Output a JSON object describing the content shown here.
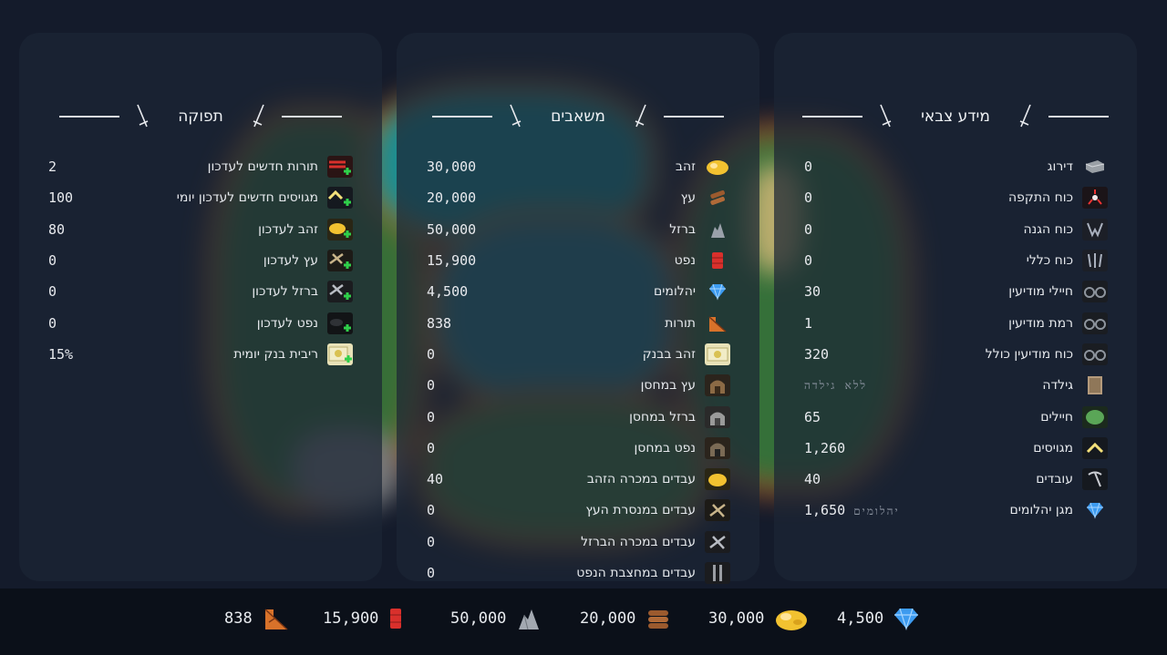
{
  "military": {
    "title": "מידע צבאי",
    "rows": [
      {
        "label": "דירוג",
        "value": "0",
        "icon": "rank-icon"
      },
      {
        "label": "כוח התקפה",
        "value": "0",
        "icon": "attack-icon"
      },
      {
        "label": "כוח הגנה",
        "value": "0",
        "icon": "defense-icon"
      },
      {
        "label": "כוח כללי",
        "value": "0",
        "icon": "total-power-icon"
      },
      {
        "label": "חיילי מודיעין",
        "value": "30",
        "icon": "spy-soldiers-icon"
      },
      {
        "label": "רמת מודיעין",
        "value": "1",
        "icon": "spy-level-icon"
      },
      {
        "label": "כוח מודיעין כולל",
        "value": "320",
        "icon": "spy-power-icon"
      },
      {
        "label": "גילדה",
        "value": "ללא גילדה",
        "icon": "guild-icon"
      },
      {
        "label": "חיילים",
        "value": "65",
        "icon": "soldiers-icon"
      },
      {
        "label": "מגויסים",
        "value": "1,260",
        "icon": "recruits-icon"
      },
      {
        "label": "עובדים",
        "value": "40",
        "icon": "workers-icon"
      },
      {
        "label": "מגן יהלומים",
        "value": "1,650",
        "suffix": "יהלומים",
        "icon": "diamond-shield-icon"
      }
    ]
  },
  "resources": {
    "title": "משאבים",
    "rows": [
      {
        "label": "זהב",
        "value": "30,000",
        "icon": "gold-icon"
      },
      {
        "label": "עץ",
        "value": "20,000",
        "icon": "wood-icon"
      },
      {
        "label": "ברזל",
        "value": "50,000",
        "icon": "iron-icon"
      },
      {
        "label": "נפט",
        "value": "15,900",
        "icon": "oil-icon"
      },
      {
        "label": "יהלומים",
        "value": "4,500",
        "icon": "diamond-icon"
      },
      {
        "label": "תורות",
        "value": "838",
        "icon": "turns-icon"
      },
      {
        "label": "זהב בבנק",
        "value": "0",
        "icon": "bank-icon"
      },
      {
        "label": "עץ במחסן",
        "value": "0",
        "icon": "wood-storage-icon"
      },
      {
        "label": "ברזל במחסן",
        "value": "0",
        "icon": "iron-storage-icon"
      },
      {
        "label": "נפט במחסן",
        "value": "0",
        "icon": "oil-storage-icon"
      },
      {
        "label": "עבדים במכרה הזהב",
        "value": "40",
        "icon": "gold-mine-icon"
      },
      {
        "label": "עבדים במנסרת העץ",
        "value": "0",
        "icon": "sawmill-icon"
      },
      {
        "label": "עבדים במכרה הברזל",
        "value": "0",
        "icon": "iron-mine-icon"
      },
      {
        "label": "עבדים במחצבת הנפט",
        "value": "0",
        "icon": "oil-rig-icon"
      }
    ]
  },
  "production": {
    "title": "תפוקה",
    "rows": [
      {
        "label": "תורות חדשים לעדכון",
        "value": "2",
        "icon": "turns-plus-icon"
      },
      {
        "label": "מגויסים חדשים לעדכון יומי",
        "value": "100",
        "icon": "recruits-plus-icon"
      },
      {
        "label": "זהב לעדכון",
        "value": "80",
        "icon": "gold-plus-icon"
      },
      {
        "label": "עץ לעדכון",
        "value": "0",
        "icon": "wood-plus-icon"
      },
      {
        "label": "ברזל לעדכון",
        "value": "0",
        "icon": "iron-plus-icon"
      },
      {
        "label": "נפט לעדכון",
        "value": "0",
        "icon": "oil-plus-icon"
      },
      {
        "label": "ריבית בנק יומית",
        "value": "15%",
        "icon": "bank-interest-icon"
      }
    ]
  },
  "bottom_bar": {
    "diamonds": "4,500",
    "gold": "30,000",
    "wood": "20,000",
    "iron": "50,000",
    "oil": "15,900",
    "turns": "838"
  },
  "colors": {
    "panel_bg": "#1c2634",
    "page_bg": "#141b2b",
    "bar_bg": "#0b1019",
    "gold": "#f2c230",
    "diamond": "#3d9bf0",
    "oil": "#d9302c",
    "plus": "#2fd04a"
  }
}
